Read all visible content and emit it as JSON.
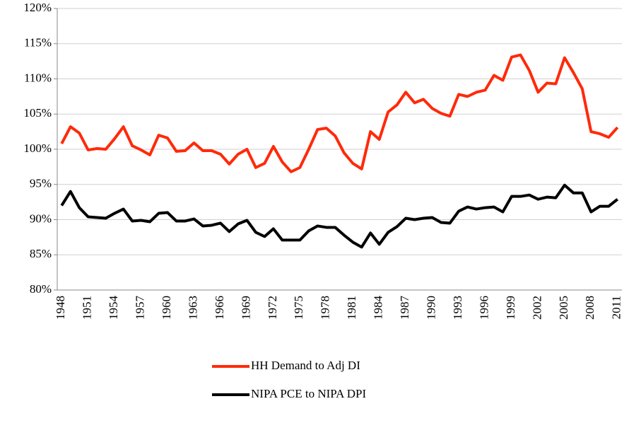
{
  "chart_data": {
    "type": "line",
    "categories": [
      "1948",
      null,
      null,
      "1951",
      null,
      null,
      "1954",
      null,
      null,
      "1957",
      null,
      null,
      "1960",
      null,
      null,
      "1963",
      null,
      null,
      "1966",
      null,
      null,
      "1969",
      null,
      null,
      "1972",
      null,
      null,
      "1975",
      null,
      null,
      "1978",
      null,
      null,
      "1981",
      null,
      null,
      "1984",
      null,
      null,
      "1987",
      null,
      null,
      "1990",
      null,
      null,
      "1993",
      null,
      null,
      "1996",
      null,
      null,
      "1999",
      null,
      null,
      "2002",
      null,
      null,
      "2005",
      null,
      null,
      "2008",
      null,
      null,
      "2011"
    ],
    "series": [
      {
        "name": "HH Demand to Adj DI",
        "color": "#ff2a0a",
        "values": [
          100.8,
          103.2,
          102.3,
          99.9,
          100.1,
          100.0,
          101.5,
          103.2,
          100.5,
          99.9,
          99.2,
          102.0,
          101.6,
          99.7,
          99.8,
          100.9,
          99.8,
          99.8,
          99.3,
          97.9,
          99.3,
          100.0,
          97.4,
          98.0,
          100.4,
          98.2,
          96.8,
          97.4,
          100.0,
          102.8,
          103.0,
          101.9,
          99.5,
          98.0,
          97.2,
          102.5,
          101.4,
          105.3,
          106.3,
          108.1,
          106.6,
          107.1,
          105.8,
          105.1,
          104.7,
          107.8,
          107.5,
          108.1,
          108.4,
          110.5,
          109.8,
          113.1,
          113.4,
          111.2,
          108.1,
          109.4,
          109.3,
          113.0,
          110.9,
          108.6,
          102.5,
          102.2,
          101.7,
          103.1
        ]
      },
      {
        "name": "NIPA PCE to NIPA DPI",
        "color": "#000000",
        "values": [
          92.0,
          94.0,
          91.7,
          90.4,
          90.3,
          90.2,
          90.9,
          91.5,
          89.8,
          89.9,
          89.7,
          90.9,
          91.0,
          89.8,
          89.8,
          90.1,
          89.1,
          89.2,
          89.5,
          88.3,
          89.4,
          89.9,
          88.2,
          87.6,
          88.7,
          87.1,
          87.1,
          87.1,
          88.4,
          89.1,
          88.9,
          88.9,
          87.8,
          86.8,
          86.1,
          88.1,
          86.5,
          88.2,
          89.0,
          90.2,
          90.0,
          90.2,
          90.3,
          89.6,
          89.5,
          91.2,
          91.8,
          91.5,
          91.7,
          91.8,
          91.1,
          93.3,
          93.3,
          93.5,
          92.9,
          93.2,
          93.1,
          94.9,
          93.8,
          93.8,
          91.1,
          91.9,
          91.9,
          92.9
        ]
      }
    ],
    "ylim": [
      80,
      120
    ],
    "yticks": [
      {
        "value": 80,
        "label": "80%"
      },
      {
        "value": 85,
        "label": "85%"
      },
      {
        "value": 90,
        "label": "90%"
      },
      {
        "value": 95,
        "label": "95%"
      },
      {
        "value": 100,
        "label": "100%"
      },
      {
        "value": 105,
        "label": "105%"
      },
      {
        "value": 110,
        "label": "110%"
      },
      {
        "value": 115,
        "label": "115%"
      },
      {
        "value": 120,
        "label": "120%"
      }
    ],
    "grid": true,
    "legend": "bottom"
  }
}
